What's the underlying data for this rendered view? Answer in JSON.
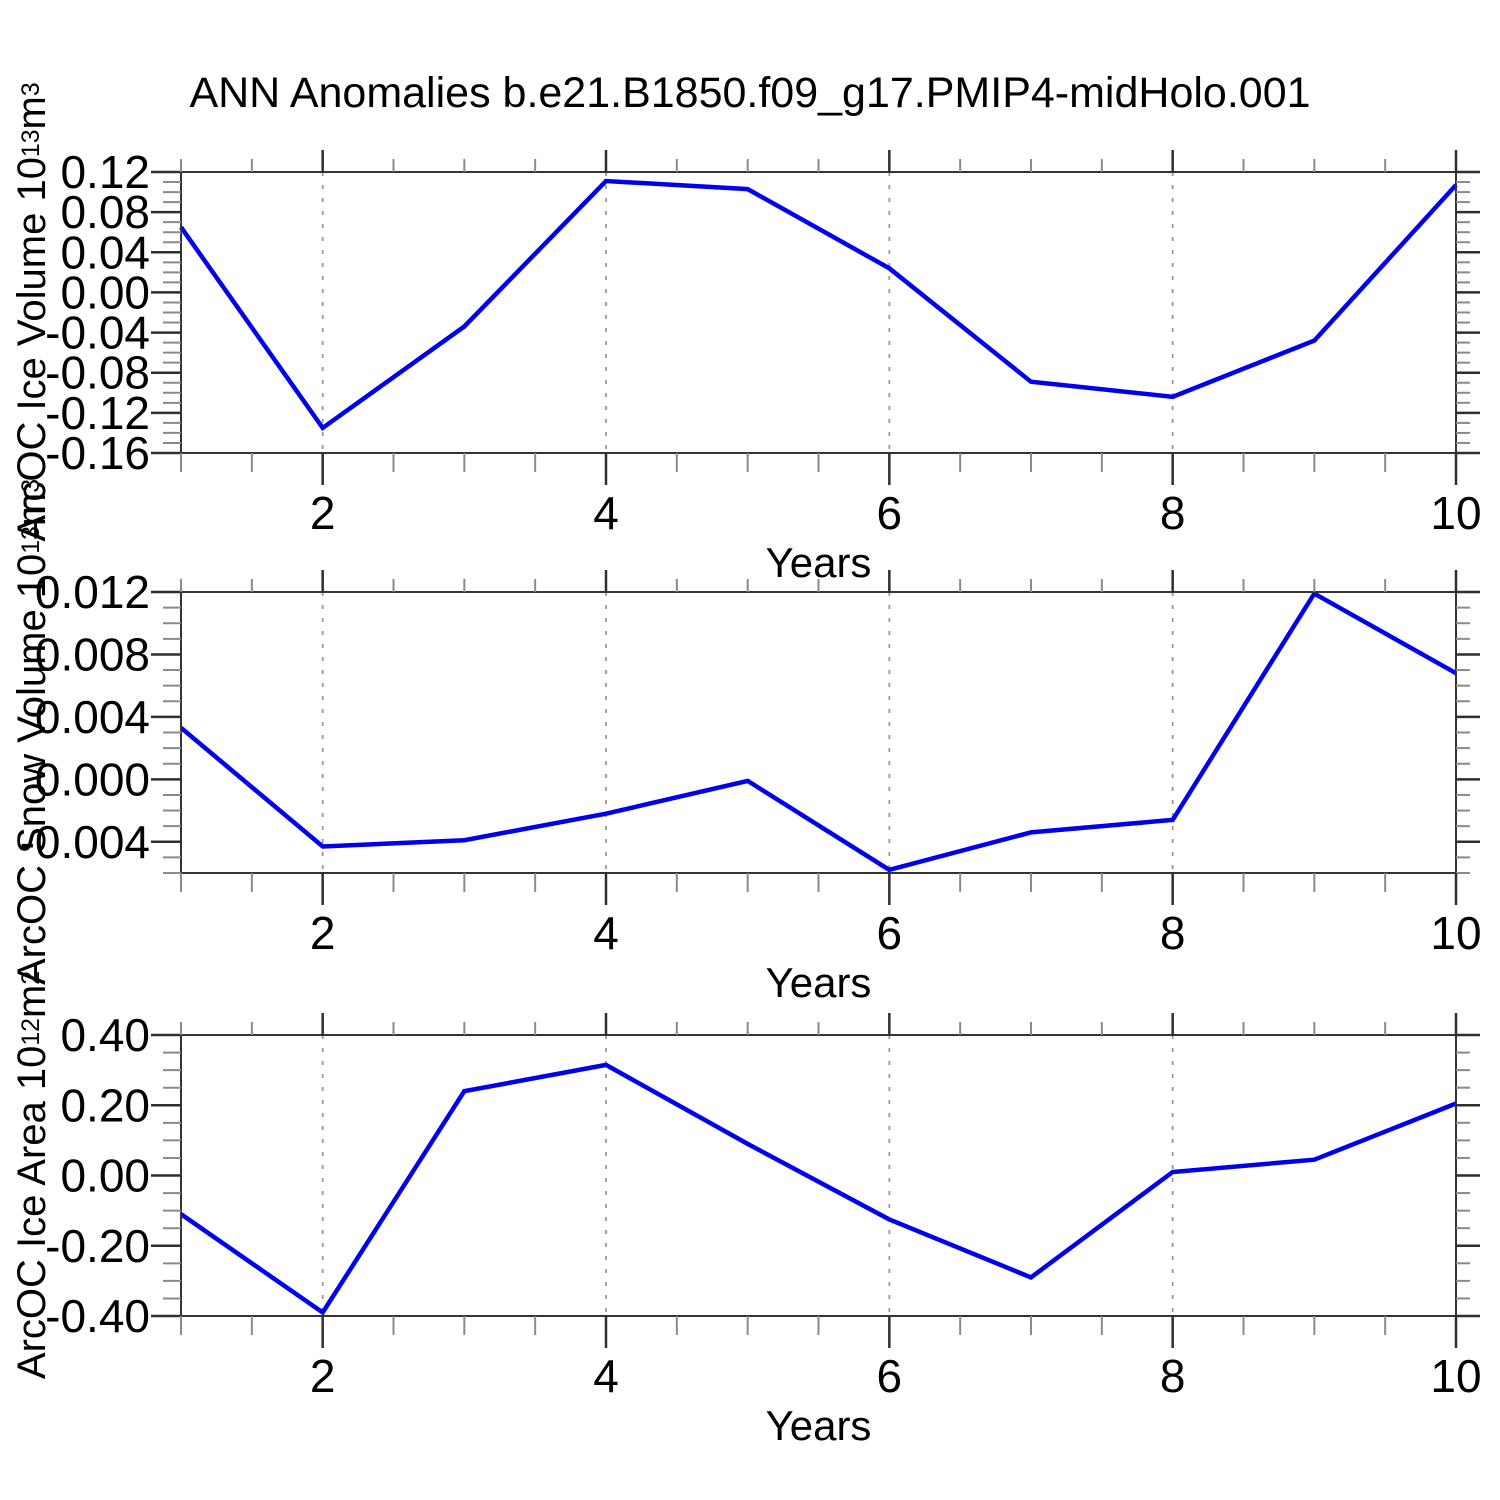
{
  "title": "ANN Anomalies b.e21.B1850.f09_g17.PMIP4-midHolo.001",
  "colors": {
    "line": "#0000ee",
    "frame": "#333333",
    "tick_major": "#2f2f2f",
    "tick_minor": "#8a8a8a",
    "grid": "#999999",
    "text": "#000000"
  },
  "chart_data": [
    {
      "type": "line",
      "ylabel": "ArcOC Ice Volume 10^13 m^3",
      "ylabel_parts": [
        {
          "t": "ArcOC Ice Volume 10"
        },
        {
          "t": "13",
          "sup": true
        },
        {
          "t": " m"
        },
        {
          "t": "3",
          "sup": true
        }
      ],
      "xlabel": "Years",
      "x": [
        1,
        2,
        3,
        4,
        5,
        6,
        7,
        8,
        9,
        10
      ],
      "values": [
        0.065,
        -0.135,
        -0.034,
        0.111,
        0.103,
        0.024,
        -0.089,
        -0.104,
        -0.048,
        0.107
      ],
      "xlim": [
        1,
        10
      ],
      "ylim": [
        -0.16,
        0.12
      ],
      "yticks": [
        0.12,
        0.08,
        0.04,
        0.0,
        -0.04,
        -0.08,
        -0.12,
        -0.16
      ],
      "ytick_labels": [
        "0.12",
        "0.08",
        "0.04",
        "0.00",
        "-0.04",
        "-0.08",
        "-0.12",
        "-0.16"
      ],
      "y_minor_step": 0.01,
      "xticks": [
        2,
        4,
        6,
        8,
        10
      ],
      "xtick_labels": [
        "2",
        "4",
        "6",
        "8",
        "10"
      ],
      "x_minor_step": 0.5,
      "grid_x": [
        2,
        4,
        6,
        8
      ],
      "grid_style": "dashed",
      "legend": "none"
    },
    {
      "type": "line",
      "ylabel": "ArcOC Snow Volume 10^13 m^3",
      "ylabel_parts": [
        {
          "t": "ArcOC Snow Volume 10"
        },
        {
          "t": "13",
          "sup": true
        },
        {
          "t": " m"
        },
        {
          "t": "3",
          "sup": true
        }
      ],
      "xlabel": "Years",
      "x": [
        1,
        2,
        3,
        4,
        5,
        6,
        7,
        8,
        9,
        10
      ],
      "values": [
        0.0033,
        -0.0043,
        -0.0039,
        -0.0022,
        -0.0001,
        -0.0058,
        -0.0034,
        -0.0026,
        0.0119,
        0.0068
      ],
      "xlim": [
        1,
        10
      ],
      "ylim": [
        -0.006,
        0.012
      ],
      "yticks": [
        0.012,
        0.008,
        0.004,
        0.0,
        -0.004
      ],
      "ytick_labels": [
        "0.012",
        "0.008",
        "0.004",
        "0.000",
        "-0.004"
      ],
      "y_minor_step": 0.001,
      "xticks": [
        2,
        4,
        6,
        8,
        10
      ],
      "xtick_labels": [
        "2",
        "4",
        "6",
        "8",
        "10"
      ],
      "x_minor_step": 0.5,
      "grid_x": [
        2,
        4,
        6,
        8
      ],
      "grid_style": "dashed",
      "legend": "none"
    },
    {
      "type": "line",
      "ylabel": "ArcOC Ice Area 10^12 m^2",
      "ylabel_parts": [
        {
          "t": "ArcOC Ice Area 10"
        },
        {
          "t": "12",
          "sup": true
        },
        {
          "t": " m"
        },
        {
          "t": "2",
          "sup": true
        }
      ],
      "xlabel": "Years",
      "x": [
        1,
        2,
        3,
        4,
        5,
        6,
        7,
        8,
        9,
        10
      ],
      "values": [
        -0.11,
        -0.39,
        0.24,
        0.315,
        0.09,
        -0.125,
        -0.29,
        0.01,
        0.045,
        0.205
      ],
      "xlim": [
        1,
        10
      ],
      "ylim": [
        -0.4,
        0.4
      ],
      "yticks": [
        0.4,
        0.2,
        0.0,
        -0.2,
        -0.4
      ],
      "ytick_labels": [
        "0.40",
        "0.20",
        "0.00",
        "-0.20",
        "-0.40"
      ],
      "y_minor_step": 0.05,
      "xticks": [
        2,
        4,
        6,
        8,
        10
      ],
      "xtick_labels": [
        "2",
        "4",
        "6",
        "8",
        "10"
      ],
      "x_minor_step": 0.5,
      "grid_x": [
        2,
        4,
        6,
        8
      ],
      "grid_style": "dashed",
      "legend": "none"
    }
  ]
}
